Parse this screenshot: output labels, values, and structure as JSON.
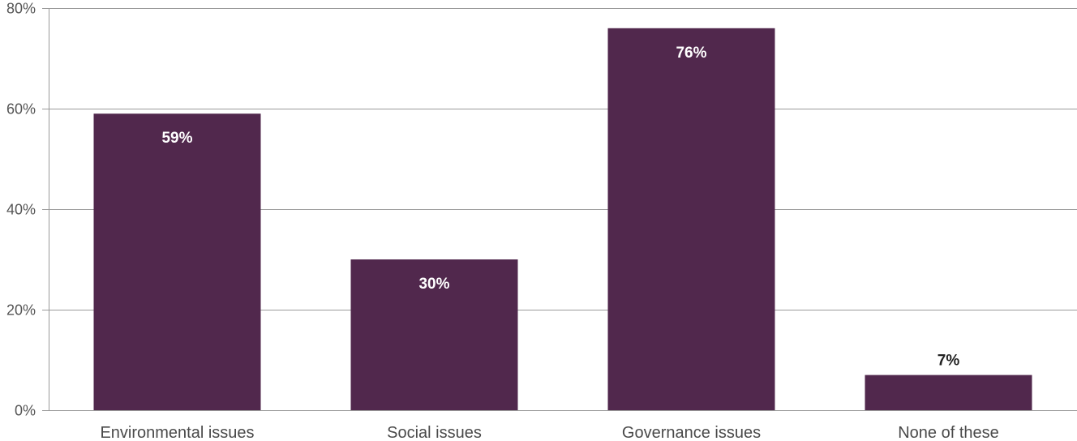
{
  "chart_data": {
    "type": "bar",
    "categories": [
      "Environmental issues",
      "Social issues",
      "Governance issues",
      "None of these"
    ],
    "values": [
      59,
      30,
      76,
      7
    ],
    "value_labels": [
      "59%",
      "30%",
      "76%",
      "7%"
    ],
    "yticks": [
      "0%",
      "20%",
      "40%",
      "60%",
      "80%"
    ],
    "ytick_values": [
      0,
      20,
      40,
      60,
      80
    ],
    "ylim": [
      0,
      80
    ],
    "grid": true,
    "title": "",
    "xlabel": "",
    "ylabel": ""
  },
  "colors": {
    "bar": "#51284d",
    "label_inside": "#ffffff",
    "label_outside": "#222222"
  }
}
